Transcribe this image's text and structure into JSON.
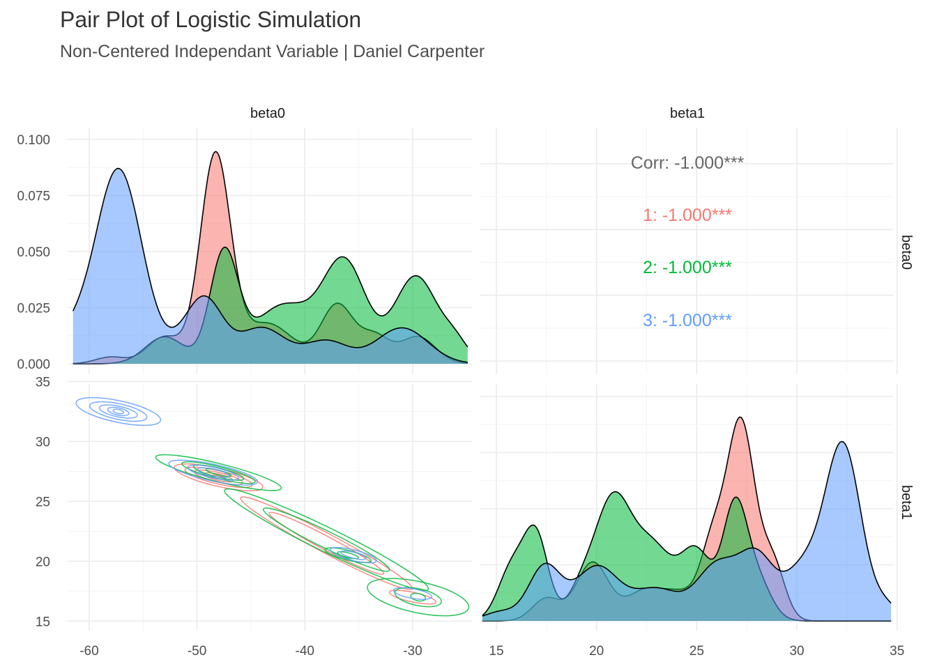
{
  "title": "Pair Plot of Logistic Simulation",
  "subtitle": "Non-Centered Independant Variable | Daniel Carpenter",
  "colors": {
    "1": "#F8766D",
    "2": "#00BA38",
    "3": "#619CFF",
    "corr_overall": "#666666"
  },
  "strips": {
    "col": [
      "beta0",
      "beta1"
    ],
    "row": [
      "beta0",
      "beta1"
    ]
  },
  "chart_data": {
    "type": "pairplot",
    "variables": [
      "beta0",
      "beta1"
    ],
    "groups": [
      "1",
      "2",
      "3"
    ],
    "axes": {
      "beta0": {
        "lim": [
          -62,
          -24.5
        ],
        "ticks": [
          -60,
          -50,
          -40,
          -30
        ],
        "tick_labels": [
          "-60",
          "-50",
          "-40",
          "-30"
        ]
      },
      "beta1": {
        "lim": [
          14.2,
          34.8
        ],
        "ticks": [
          15,
          20,
          25,
          30,
          35
        ],
        "tick_labels": [
          "15",
          "20",
          "25",
          "30",
          "35"
        ]
      },
      "density_y": {
        "lim": [
          0,
          0.1
        ],
        "ticks": [
          0,
          0.025,
          0.05,
          0.075,
          0.1
        ],
        "tick_labels": [
          "0.000",
          "0.025",
          "0.050",
          "0.075",
          "0.100"
        ]
      }
    },
    "density_beta0": {
      "x_range": [
        -61.5,
        -24.9
      ],
      "series": [
        {
          "name": "1",
          "peaks": [
            [
              -58,
              0.003,
              1.4
            ],
            [
              -53,
              0.012,
              1.6
            ],
            [
              -48.3,
              0.092,
              1.4
            ],
            [
              -43.5,
              0.018,
              2.4
            ],
            [
              -37,
              0.026,
              1.5
            ],
            [
              -33.5,
              0.012,
              1.4
            ],
            [
              -29.5,
              0.012,
              1.6
            ]
          ]
        },
        {
          "name": "2",
          "peaks": [
            [
              -53,
              0.012,
              1.8
            ],
            [
              -47.5,
              0.048,
              1.3
            ],
            [
              -42,
              0.026,
              2.8
            ],
            [
              -36.3,
              0.044,
              2.0
            ],
            [
              -29.7,
              0.039,
              2.0
            ],
            [
              -26,
              0.008,
              1.2
            ]
          ]
        },
        {
          "name": "3",
          "peaks": [
            [
              -62,
              0.01,
              1.5
            ],
            [
              -57.3,
              0.087,
              2.2
            ],
            [
              -50.5,
              0.012,
              1.8
            ],
            [
              -49,
              0.02,
              1.6
            ],
            [
              -44,
              0.016,
              2.2
            ],
            [
              -38,
              0.01,
              2.0
            ],
            [
              -31,
              0.016,
              2.4
            ]
          ]
        }
      ]
    },
    "density_beta1": {
      "x_range": [
        14.3,
        34.7
      ],
      "series": [
        {
          "name": "1",
          "peaks": [
            [
              17.5,
              0.01,
              0.7
            ],
            [
              19.8,
              0.026,
              0.8
            ],
            [
              22.3,
              0.012,
              0.9
            ],
            [
              24.2,
              0.012,
              1.0
            ],
            [
              25.8,
              0.03,
              0.6
            ],
            [
              27.2,
              0.088,
              0.7
            ],
            [
              28.8,
              0.025,
              0.6
            ]
          ]
        },
        {
          "name": "2",
          "peaks": [
            [
              15.8,
              0.024,
              0.7
            ],
            [
              17.0,
              0.036,
              0.6
            ],
            [
              19.2,
              0.012,
              0.7
            ],
            [
              20.8,
              0.052,
              0.9
            ],
            [
              22.8,
              0.032,
              1.0
            ],
            [
              25.0,
              0.03,
              0.8
            ],
            [
              26.9,
              0.048,
              0.6
            ],
            [
              28.0,
              0.018,
              0.7
            ]
          ]
        },
        {
          "name": "3",
          "peaks": [
            [
              15.2,
              0.004,
              0.8
            ],
            [
              17.4,
              0.024,
              0.8
            ],
            [
              20.0,
              0.024,
              1.1
            ],
            [
              23.0,
              0.014,
              1.2
            ],
            [
              26.0,
              0.024,
              1.0
            ],
            [
              28.0,
              0.028,
              0.9
            ],
            [
              30.3,
              0.022,
              0.9
            ],
            [
              32.3,
              0.078,
              0.9
            ],
            [
              34.5,
              0.006,
              0.6
            ]
          ]
        }
      ]
    },
    "correlation": [
      {
        "label": "Corr: -1.000***",
        "group": "overall"
      },
      {
        "label": "1: -1.000***",
        "group": "1"
      },
      {
        "label": "2: -1.000***",
        "group": "2"
      },
      {
        "label": "3: -1.000***",
        "group": "3"
      }
    ],
    "contours": {
      "x_var": "beta0",
      "y_var": "beta1",
      "series": [
        {
          "name": "1",
          "clusters": [
            {
              "center": [
                -48,
                27
              ],
              "rx": [
                4.2,
                3.2,
                2.3,
                1.4,
                0.7
              ],
              "ry": [
                0.75,
                0.55,
                0.4,
                0.26,
                0.13
              ],
              "angle_deg": 13
            },
            {
              "center": [
                -38,
                21.5
              ],
              "rx": [
                9,
                6
              ],
              "ry": [
                0.8,
                0.55
              ],
              "angle_deg": 28
            },
            {
              "center": [
                -30,
                17
              ],
              "rx": [
                2.2
              ],
              "ry": [
                0.4
              ],
              "angle_deg": 12
            }
          ]
        },
        {
          "name": "2",
          "clusters": [
            {
              "center": [
                -48,
                27.4
              ],
              "rx": [
                6,
                3.5,
                2.4,
                1.2
              ],
              "ry": [
                0.75,
                0.5,
                0.38,
                0.2
              ],
              "angle_deg": 14
            },
            {
              "center": [
                -38,
                21.8
              ],
              "rx": [
                10.5,
                6.5
              ],
              "ry": [
                1.0,
                0.7
              ],
              "angle_deg": 26
            },
            {
              "center": [
                -36,
                20.5
              ],
              "rx": [
                2.2,
                1.0
              ],
              "ry": [
                0.4,
                0.2
              ],
              "angle_deg": 14
            },
            {
              "center": [
                -29.5,
                17
              ],
              "rx": [
                4.8,
                2.2,
                0.7
              ],
              "ry": [
                1.3,
                0.7,
                0.3
              ],
              "angle_deg": 12
            }
          ]
        },
        {
          "name": "3",
          "clusters": [
            {
              "center": [
                -57.3,
                32.5
              ],
              "rx": [
                4.0,
                2.7,
                1.8,
                1.0,
                0.5
              ],
              "ry": [
                0.9,
                0.65,
                0.45,
                0.3,
                0.17
              ],
              "angle_deg": 12
            },
            {
              "center": [
                -48.5,
                27.4
              ],
              "rx": [
                4.2,
                2.4,
                1.5
              ],
              "ry": [
                0.7,
                0.45,
                0.3
              ],
              "angle_deg": 12
            },
            {
              "center": [
                -35.5,
                20.5
              ],
              "rx": [
                2.2,
                1.2
              ],
              "ry": [
                0.45,
                0.25
              ],
              "angle_deg": 14
            },
            {
              "center": [
                -30,
                17.3
              ],
              "rx": [
                1.8
              ],
              "ry": [
                0.4
              ],
              "angle_deg": 10
            }
          ]
        }
      ]
    }
  }
}
